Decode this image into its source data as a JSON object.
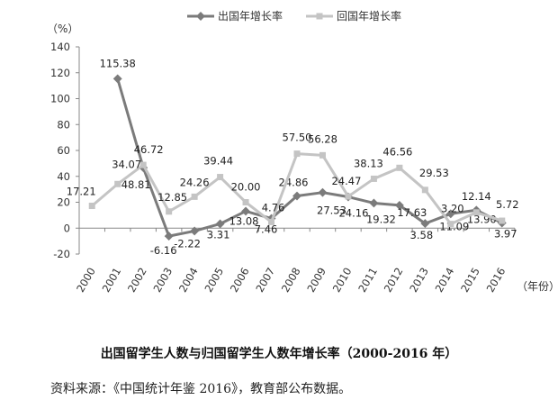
{
  "chart_data": {
    "type": "line",
    "y_unit_label": "（%）",
    "x_unit_label": "（年份）",
    "ylim": [
      -20,
      140
    ],
    "yticks": [
      -20,
      0,
      20,
      40,
      60,
      80,
      100,
      120,
      140
    ],
    "grid": false,
    "legend_position": "top",
    "categories": [
      "2000",
      "2001",
      "2002",
      "2003",
      "2004",
      "2005",
      "2006",
      "2007",
      "2008",
      "2009",
      "2010",
      "2011",
      "2012",
      "2013",
      "2014",
      "2015",
      "2016"
    ],
    "series": [
      {
        "name": "出国年增长率",
        "color": "#7b7b7b",
        "values": [
          null,
          115.38,
          46.72,
          -6.16,
          -2.22,
          3.31,
          13.08,
          7.46,
          24.86,
          27.53,
          24.16,
          19.32,
          17.63,
          3.58,
          11.09,
          13.9,
          3.97
        ],
        "labels": [
          null,
          "115.38",
          "46.72",
          "-6.16",
          "-2.22",
          "3.31",
          "13.08",
          "7.46",
          "24.86",
          "27.53",
          "24.16",
          "19.32",
          "17.63",
          "3.58",
          "11.09",
          "13.90",
          "3.97"
        ]
      },
      {
        "name": "回国年增长率",
        "color": "#c4c4c4",
        "values": [
          17.21,
          34.07,
          48.81,
          12.85,
          24.26,
          39.44,
          20.0,
          4.76,
          57.5,
          56.28,
          24.47,
          38.13,
          46.56,
          29.53,
          3.2,
          12.14,
          5.72
        ],
        "labels": [
          "17.21",
          "34.07",
          "48.81",
          "12.85",
          "24.26",
          "39.44",
          "20.00",
          "4.76",
          "57.50",
          "56.28",
          "24.47",
          "38.13",
          "46.56",
          "29.53",
          "3.20",
          "12.14",
          "5.72"
        ]
      }
    ]
  },
  "caption": "出国留学生人数与归国留学生人数年增长率（2000-2016 年）",
  "source": "资料来源：《中国统计年鉴 2016》，教育部公布数据。"
}
